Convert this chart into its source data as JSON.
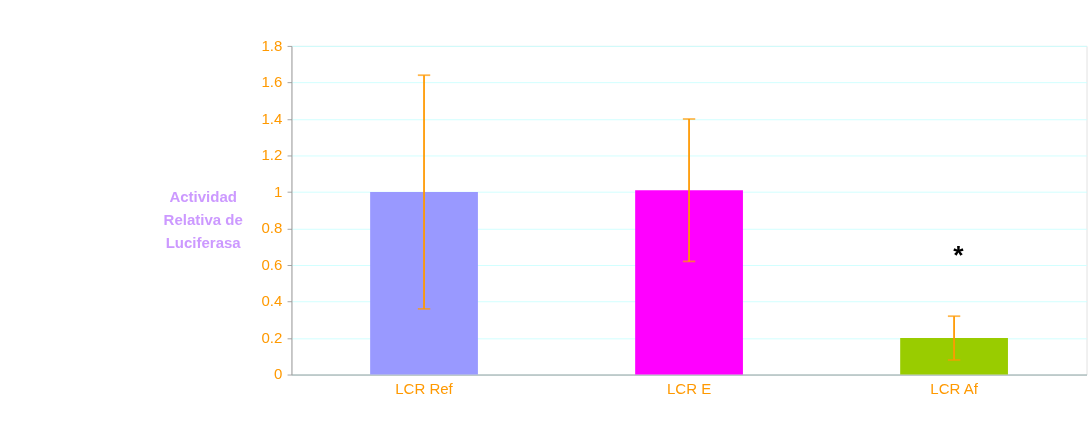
{
  "chart_data": {
    "type": "bar",
    "ylabel": "Actividad\nRelativa de\nLuciferasa",
    "categories": [
      "LCR Ref",
      "LCR E",
      "LCR Af"
    ],
    "values": [
      1.0,
      1.01,
      0.2
    ],
    "colors": [
      "#9999ff",
      "#ff00ff",
      "#99cc00"
    ],
    "errors": [
      [
        0.36,
        1.64
      ],
      [
        0.62,
        1.4
      ],
      [
        0.08,
        0.32
      ]
    ],
    "ylim": [
      0,
      1.8
    ],
    "yticks": [
      0,
      0.2,
      0.4,
      0.6,
      0.8,
      1,
      1.2,
      1.4,
      1.6,
      1.8
    ],
    "grid": "y",
    "annotations": [
      "*"
    ]
  }
}
